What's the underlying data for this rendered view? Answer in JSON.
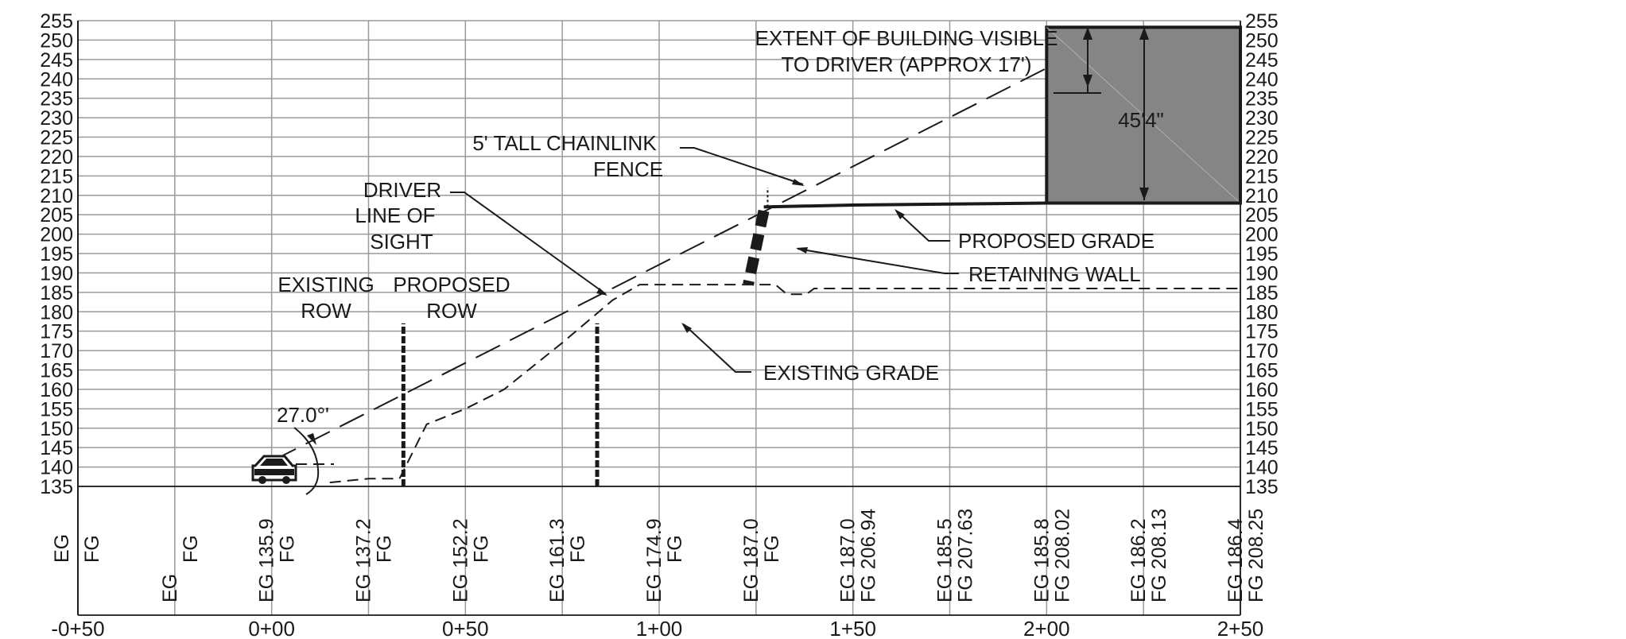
{
  "chart_data": {
    "type": "profile-section",
    "y_axis": {
      "min": 135,
      "max": 255,
      "step": 5,
      "ticks": [
        "255",
        "250",
        "245",
        "240",
        "235",
        "230",
        "225",
        "220",
        "215",
        "210",
        "205",
        "200",
        "195",
        "190",
        "185",
        "180",
        "175",
        "170",
        "165",
        "160",
        "155",
        "150",
        "145",
        "140",
        "135"
      ]
    },
    "x_axis": {
      "min": -0.5,
      "max": 2.5,
      "station_labels": [
        "-0+50",
        "0+00",
        "0+50",
        "1+00",
        "1+50",
        "2+00",
        "2+50"
      ]
    },
    "stations": [
      {
        "fg": "FG",
        "eg": "EG"
      },
      {
        "fg": "FG",
        "eg": "EG"
      },
      {
        "fg": "FG",
        "eg": "EG  135.9"
      },
      {
        "fg": "FG",
        "eg": "EG  137.2"
      },
      {
        "fg": "FG",
        "eg": "EG  152.2"
      },
      {
        "fg": "FG",
        "eg": "EG  161.3"
      },
      {
        "fg": "FG",
        "eg": "EG  174.9"
      },
      {
        "fg": "FG",
        "eg": "EG  187.0"
      },
      {
        "fg": "FG 206.94",
        "eg": "EG  187.0"
      },
      {
        "fg": "FG 207.63",
        "eg": "EG  185.5"
      },
      {
        "fg": "FG 208.02",
        "eg": "EG  185.8"
      },
      {
        "fg": "FG 208.13",
        "eg": "EG  186.2"
      },
      {
        "fg": "FG 208.25",
        "eg": "EG  186.4"
      }
    ],
    "series": [
      {
        "name": "EXISTING GRADE",
        "style": "short-dash",
        "points": [
          [
            0.15,
            136
          ],
          [
            0.25,
            137
          ],
          [
            0.33,
            137
          ],
          [
            0.4,
            151
          ],
          [
            0.5,
            155
          ],
          [
            0.6,
            160
          ],
          [
            0.75,
            172
          ],
          [
            0.88,
            183
          ],
          [
            0.95,
            187
          ],
          [
            1.3,
            187
          ],
          [
            1.33,
            184.5
          ],
          [
            1.38,
            184.5
          ],
          [
            1.4,
            186
          ],
          [
            1.6,
            186
          ],
          [
            2.5,
            186
          ]
        ]
      },
      {
        "name": "PROPOSED GRADE",
        "style": "solid",
        "points": [
          [
            1.27,
            207
          ],
          [
            1.5,
            207.5
          ],
          [
            2.0,
            208
          ],
          [
            2.5,
            208
          ]
        ]
      },
      {
        "name": "DRIVER LINE OF SIGHT",
        "style": "long-dash",
        "points": [
          [
            0.0,
            141.5
          ],
          [
            1.995,
            242.5
          ]
        ]
      }
    ],
    "building": {
      "station_start": 2.0,
      "station_end": 2.5,
      "elev_bottom": 208,
      "elev_top": 253.3,
      "height_label": "45'4\"",
      "fill": "#858585"
    },
    "row_markers": [
      {
        "label": "EXISTING ROW",
        "station": 0.34,
        "elev_bottom": 135,
        "elev_top": 177
      },
      {
        "label": "PROPOSED ROW",
        "station": 0.84,
        "elev_bottom": 135,
        "elev_top": 177
      }
    ],
    "retaining_wall": {
      "label": "RETAINING WALL",
      "top": [
        1.27,
        206
      ],
      "bottom": [
        1.23,
        187
      ]
    },
    "fence": {
      "label_line1": "5' TALL  CHAINLINK",
      "label_line2": "FENCE",
      "station": 1.28,
      "elev_bottom": 207,
      "elev_top": 212
    },
    "angle_label": "27.0°'",
    "annotations": {
      "visible_line1": "EXTENT OF BUILDING VISIBLE",
      "visible_line2": "TO DRIVER (APPROX 17')",
      "driver_line1": "DRIVER",
      "driver_line2": "LINE OF",
      "driver_line3": "SIGHT",
      "existing_row_line1": "EXISTING",
      "existing_row_line2": "ROW",
      "proposed_row_line1": "PROPOSED",
      "proposed_row_line2": "ROW",
      "proposed_grade": "PROPOSED GRADE",
      "existing_grade": "EXISTING GRADE"
    },
    "icons": {
      "vehicle": "car-icon"
    }
  }
}
